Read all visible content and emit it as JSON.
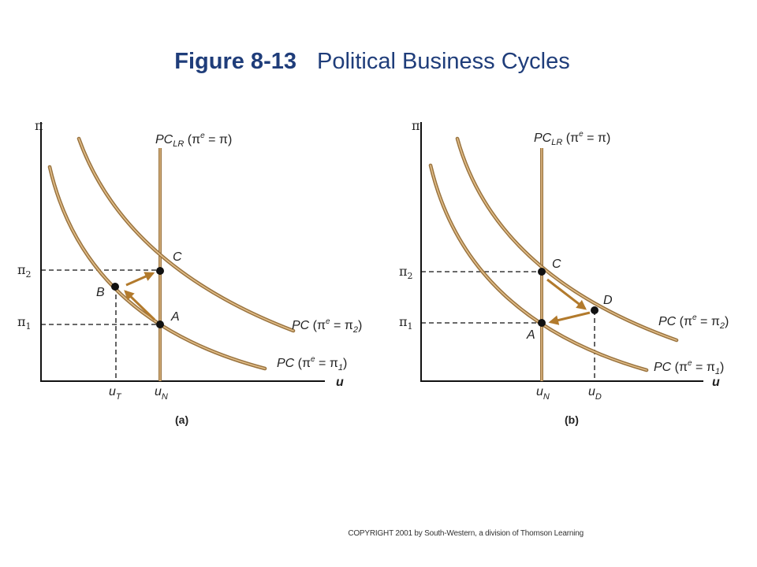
{
  "title": {
    "figure_number": "Figure 8-13",
    "caption": "Political Business Cycles"
  },
  "copyright": "COPYRIGHT 2001 by South-Western, a division of Thomson Learning",
  "colors": {
    "title": "#1f3d7a",
    "curve": "#9a7440",
    "curve_highlight": "#e3bf8a",
    "arrow": "#b27a2c"
  },
  "panels": [
    {
      "label": "(a)",
      "y_axis": "π",
      "x_axis": "u",
      "long_run_curve": {
        "base": "PC",
        "sub": "LR",
        "expr_open": " (π",
        "expr_sup": "e",
        "expr_close": " = π)"
      },
      "curves": [
        {
          "base": "PC",
          "open": " (π",
          "sup": "e",
          "rest": " = π",
          "sub": "2",
          "close": ")"
        },
        {
          "base": "PC",
          "open": " (π",
          "sup": "e",
          "rest": " = π",
          "sub": "1",
          "close": ")"
        }
      ],
      "y_ticks": [
        {
          "base": "π",
          "sub": "2"
        },
        {
          "base": "π",
          "sub": "1"
        }
      ],
      "x_ticks": [
        {
          "base": "u",
          "sub": "T"
        },
        {
          "base": "u",
          "sub": "N"
        }
      ],
      "points": [
        "A",
        "B",
        "C"
      ]
    },
    {
      "label": "(b)",
      "y_axis": "π",
      "x_axis": "u",
      "long_run_curve": {
        "base": "PC",
        "sub": "LR",
        "expr_open": " (π",
        "expr_sup": "e",
        "expr_close": " = π)"
      },
      "curves": [
        {
          "base": "PC",
          "open": " (π",
          "sup": "e",
          "rest": " = π",
          "sub": "2",
          "close": ")"
        },
        {
          "base": "PC",
          "open": " (π",
          "sup": "e",
          "rest": " = π",
          "sub": "1",
          "close": ")"
        }
      ],
      "y_ticks": [
        {
          "base": "π",
          "sub": "2"
        },
        {
          "base": "π",
          "sub": "1"
        }
      ],
      "x_ticks": [
        {
          "base": "u",
          "sub": "N"
        },
        {
          "base": "u",
          "sub": "D"
        }
      ],
      "points": [
        "A",
        "C",
        "D"
      ]
    }
  ]
}
